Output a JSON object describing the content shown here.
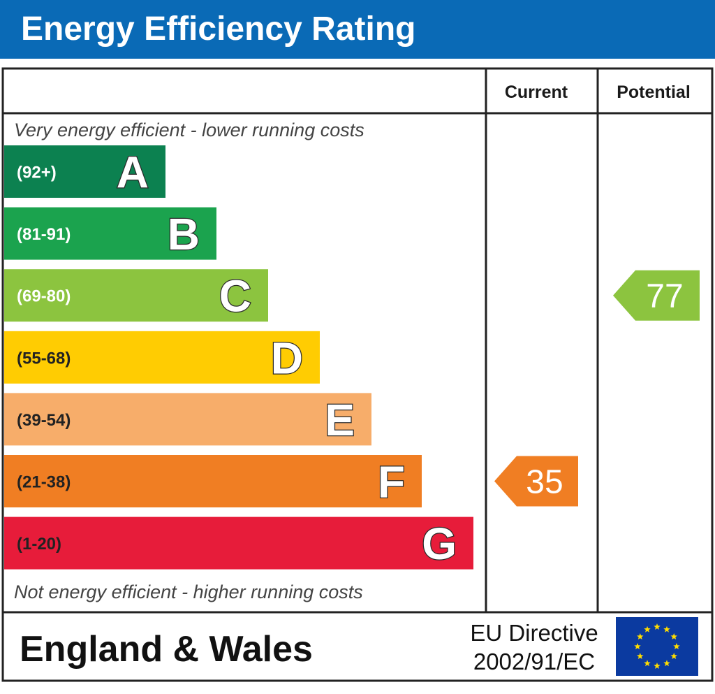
{
  "title": "Energy Efficiency Rating",
  "headers": {
    "current": "Current",
    "potential": "Potential"
  },
  "top_note": "Very energy efficient - lower running costs",
  "bottom_note": "Not energy efficient - higher running costs",
  "region": "England & Wales",
  "directive": {
    "line1": "EU Directive",
    "line2": "2002/91/EC"
  },
  "chart_data": {
    "type": "bar",
    "categories": [
      "A",
      "B",
      "C",
      "D",
      "E",
      "F",
      "G"
    ],
    "ranges": [
      "(92+)",
      "(81-91)",
      "(69-80)",
      "(55-68)",
      "(39-54)",
      "(21-38)",
      "(1-20)"
    ],
    "min_scores": [
      92,
      81,
      69,
      55,
      39,
      21,
      1
    ],
    "colors": [
      "#0c8150",
      "#1ba34e",
      "#8cc43f",
      "#ffcc02",
      "#f7ad6a",
      "#f07e23",
      "#e71c3a"
    ],
    "current": {
      "value": 35,
      "band": "F",
      "color": "#f07e23"
    },
    "potential": {
      "value": 77,
      "band": "C",
      "color": "#8cc43f"
    }
  }
}
